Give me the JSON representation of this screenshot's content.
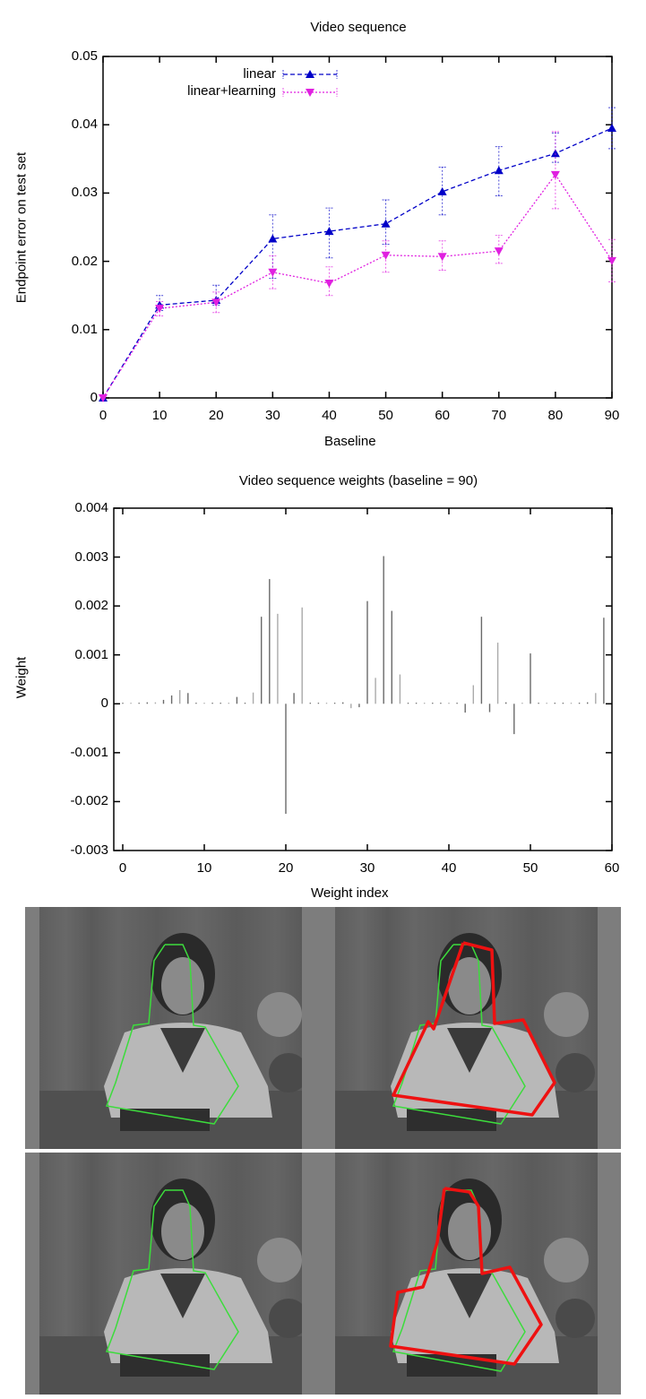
{
  "chart_data": [
    {
      "type": "line",
      "title": "Video sequence",
      "xlabel": "Baseline",
      "ylabel": "Endpoint error on test set",
      "x": [
        0,
        10,
        20,
        30,
        40,
        50,
        60,
        70,
        80,
        90
      ],
      "xlim": [
        0,
        90
      ],
      "ylim": [
        0,
        0.05
      ],
      "xticks": [
        "0",
        "10",
        "20",
        "30",
        "40",
        "50",
        "60",
        "70",
        "80",
        "90"
      ],
      "yticks": [
        "0",
        "0.01",
        "0.02",
        "0.03",
        "0.04",
        "0.05"
      ],
      "grid": false,
      "legend_position": "top-left",
      "error_bars": true,
      "series": [
        {
          "name": "linear",
          "color": "#0000c8",
          "marker": "triangle-up",
          "linestyle": "dashed",
          "values": [
            0,
            0.0136,
            0.0143,
            0.0233,
            0.0244,
            0.0255,
            0.0302,
            0.0333,
            0.0358,
            0.0395
          ],
          "err_low": [
            0,
            0.0128,
            0.0136,
            0.0175,
            0.0205,
            0.0225,
            0.0268,
            0.0296,
            0.0345,
            0.0365
          ],
          "err_high": [
            0,
            0.015,
            0.0165,
            0.0268,
            0.0278,
            0.029,
            0.0338,
            0.0368,
            0.0388,
            0.0425
          ]
        },
        {
          "name": "linear+learning",
          "color": "#e020e0",
          "marker": "triangle-down",
          "linestyle": "dotted",
          "values": [
            0,
            0.0131,
            0.014,
            0.0184,
            0.0168,
            0.0209,
            0.0207,
            0.0215,
            0.0327,
            0.0201
          ],
          "err_low": [
            0,
            0.012,
            0.0125,
            0.016,
            0.015,
            0.0184,
            0.0187,
            0.0197,
            0.0277,
            0.017
          ],
          "err_high": [
            0,
            0.0141,
            0.0155,
            0.0208,
            0.0192,
            0.023,
            0.023,
            0.0238,
            0.039,
            0.0232
          ]
        }
      ]
    },
    {
      "type": "bar",
      "subtype": "impulse",
      "title": "Video sequence weights (baseline = 90)",
      "xlabel": "Weight index",
      "ylabel": "Weight",
      "xlim": [
        0,
        60
      ],
      "ylim": [
        -0.003,
        0.004
      ],
      "xticks": [
        "0",
        "10",
        "20",
        "30",
        "40",
        "50",
        "60"
      ],
      "yticks": [
        "-0.003",
        "-0.002",
        "-0.001",
        "0",
        "0.001",
        "0.002",
        "0.003",
        "0.004"
      ],
      "grid": false,
      "categories": [
        0,
        1,
        2,
        3,
        4,
        5,
        6,
        7,
        8,
        9,
        10,
        11,
        12,
        13,
        14,
        15,
        16,
        17,
        18,
        19,
        20,
        21,
        22,
        23,
        24,
        25,
        26,
        27,
        28,
        29,
        30,
        31,
        32,
        33,
        34,
        35,
        36,
        37,
        38,
        39,
        40,
        41,
        42,
        43,
        44,
        45,
        46,
        47,
        48,
        49,
        50,
        51,
        52,
        53,
        54,
        55,
        56,
        57,
        58,
        59
      ],
      "values": [
        0,
        0,
        0,
        3e-05,
        3e-05,
        8e-05,
        0.00017,
        0.00028,
        0.00022,
        2e-05,
        1e-05,
        1e-05,
        1e-05,
        -2e-05,
        0.00014,
        -2e-05,
        0.00023,
        0.00178,
        0.00255,
        0.00184,
        -0.00225,
        0.00022,
        0.00197,
        0,
        0,
        0,
        0,
        3e-05,
        -9e-05,
        -7e-05,
        0.0021,
        0.00053,
        0.00302,
        0.0019,
        0.0006,
        0,
        0,
        0,
        0,
        1e-05,
        2e-05,
        2e-05,
        -0.00018,
        0.00038,
        0.00178,
        -0.00017,
        0.00125,
        3e-05,
        -0.00062,
        0,
        0.00103,
        0,
        0,
        0,
        0,
        0,
        2e-05,
        3e-05,
        0.00022,
        0.00176
      ]
    }
  ],
  "figure": {
    "image_panels": {
      "rows": [
        {
          "left": {
            "description": "grayscale video frame of woman at desk with blue tracked feature points and green outline polygon"
          },
          "right": {
            "description": "same frame with green outline and red predicted polygon (displaced, rotated)"
          }
        },
        {
          "left": {
            "description": "grayscale video frame of woman at desk with blue tracked feature points and green outline polygon"
          },
          "right": {
            "description": "same frame with green outline and red predicted polygon closely matching"
          }
        }
      ],
      "colors": {
        "outline_truth": "#3cdc3c",
        "outline_prediction": "#ee1111",
        "feature_points": "#1a1aff"
      }
    }
  }
}
